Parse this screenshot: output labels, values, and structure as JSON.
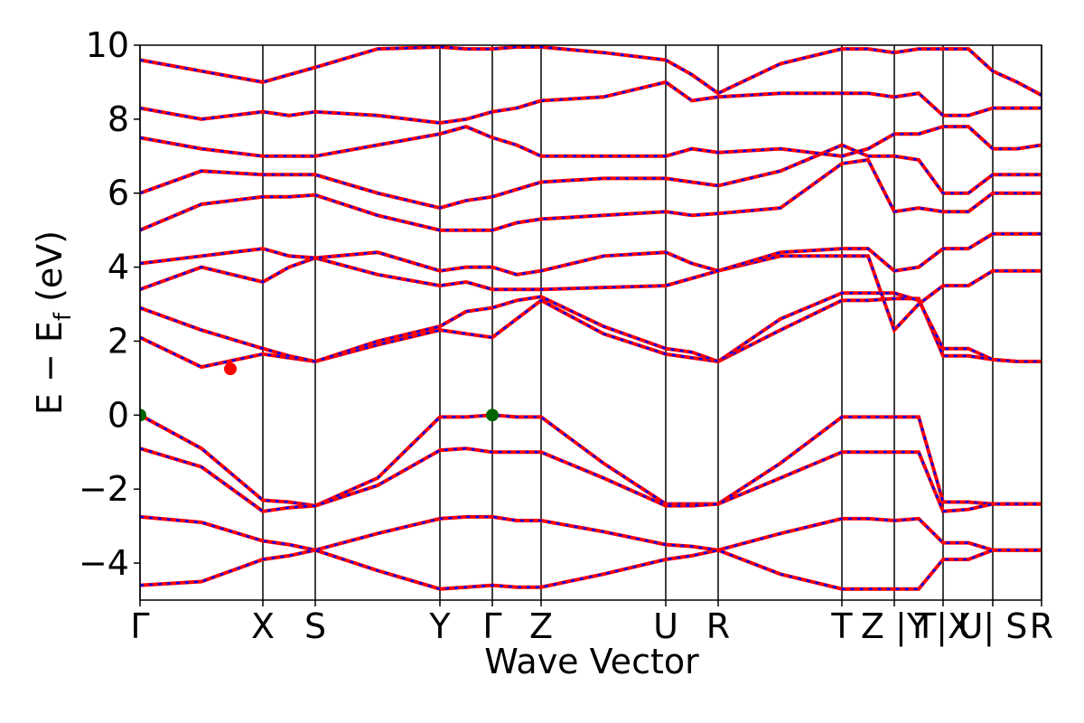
{
  "chart_data": {
    "type": "line",
    "xlabel": "Wave Vector",
    "ylabel": {
      "main": "E − E",
      "sub": "f",
      "unit": "(eV)"
    },
    "ylim": [
      -5,
      10
    ],
    "yticks": [
      {
        "value": -4,
        "label": "−4"
      },
      {
        "value": -2,
        "label": "−2"
      },
      0,
      2,
      4,
      6,
      8,
      10
    ],
    "xlim": [
      0,
      9.98
    ],
    "xticks": [
      {
        "value": 0,
        "label": "Γ"
      },
      {
        "value": 1.36,
        "label": "X"
      },
      {
        "value": 1.94,
        "label": "S"
      },
      {
        "value": 3.32,
        "label": "Y"
      },
      {
        "value": 3.9,
        "label": "Γ"
      },
      {
        "value": 4.44,
        "label": "Z"
      },
      {
        "value": 5.82,
        "label": "U"
      },
      {
        "value": 6.4,
        "label": "R"
      },
      {
        "value": 7.77,
        "label": "T"
      },
      {
        "value": 8.35,
        "label": "Z |Y"
      },
      {
        "value": 8.89,
        "label": "T|X"
      },
      {
        "value": 9.44,
        "label": "U| S"
      },
      {
        "value": 9.98,
        "label": "R"
      }
    ],
    "dash_color": "#0000ff",
    "x": [
      0,
      0.68,
      1.36,
      1.65,
      1.94,
      2.63,
      3.32,
      3.61,
      3.9,
      4.17,
      4.44,
      5.13,
      5.82,
      6.11,
      6.4,
      7.09,
      7.77,
      8.06,
      8.35,
      8.62,
      8.89,
      9.17,
      9.44,
      9.71,
      9.98
    ],
    "series": [
      {
        "color": "#ff0000",
        "values": [
          0,
          -0.9,
          -2.3,
          -2.35,
          -2.45,
          -1.7,
          -0.05,
          -0.05,
          0,
          -0.05,
          -0.05,
          -1.3,
          -2.4,
          -2.4,
          -2.4,
          -1.3,
          -0.05,
          -0.05,
          -0.05,
          -0.05,
          -2.35,
          -2.35,
          -2.4,
          -2.4,
          -2.4
        ]
      },
      {
        "color": "#ff0000",
        "values": [
          -0.9,
          -1.4,
          -2.6,
          -2.5,
          -2.45,
          -1.9,
          -0.95,
          -0.9,
          -1.0,
          -1.0,
          -1.0,
          -1.7,
          -2.45,
          -2.45,
          -2.4,
          -1.7,
          -1.0,
          -1.0,
          -1.0,
          -1.0,
          -2.6,
          -2.55,
          -2.4,
          -2.4,
          -2.4
        ]
      },
      {
        "color": "#ff0000",
        "values": [
          -2.75,
          -2.9,
          -3.4,
          -3.5,
          -3.65,
          -3.2,
          -2.8,
          -2.75,
          -2.75,
          -2.85,
          -2.85,
          -3.15,
          -3.5,
          -3.55,
          -3.65,
          -3.2,
          -2.8,
          -2.8,
          -2.85,
          -2.8,
          -3.45,
          -3.45,
          -3.65,
          -3.65,
          -3.65
        ]
      },
      {
        "color": "#ff0000",
        "values": [
          -4.6,
          -4.5,
          -3.9,
          -3.8,
          -3.65,
          -4.2,
          -4.7,
          -4.65,
          -4.6,
          -4.65,
          -4.65,
          -4.3,
          -3.9,
          -3.8,
          -3.65,
          -4.3,
          -4.7,
          -4.7,
          -4.7,
          -4.7,
          -3.9,
          -3.9,
          -3.65,
          -3.65,
          -3.65
        ]
      },
      {
        "color": "#ff0000",
        "values": [
          2.1,
          1.3,
          1.65,
          1.55,
          1.45,
          1.9,
          2.3,
          2.2,
          2.1,
          2.6,
          3.1,
          2.2,
          1.65,
          1.55,
          1.45,
          2.3,
          3.1,
          3.1,
          3.15,
          3.15,
          1.6,
          1.6,
          1.5,
          1.45,
          1.45
        ]
      },
      {
        "color": "#ff0000",
        "values": [
          2.9,
          2.3,
          1.8,
          1.6,
          1.45,
          2.0,
          2.4,
          2.8,
          2.9,
          3.1,
          3.2,
          2.4,
          1.8,
          1.7,
          1.45,
          2.6,
          3.3,
          3.3,
          3.3,
          3.1,
          1.8,
          1.8,
          1.5,
          1.45,
          1.45
        ]
      },
      {
        "color": "#ff0000",
        "values": [
          3.4,
          4.0,
          3.6,
          4.0,
          4.25,
          3.8,
          3.5,
          3.6,
          3.4,
          3.4,
          3.4,
          3.45,
          3.5,
          3.7,
          3.9,
          4.3,
          4.3,
          4.3,
          2.3,
          3.0,
          3.5,
          3.5,
          3.9,
          3.9,
          3.9
        ]
      },
      {
        "color": "#ff0000",
        "values": [
          4.1,
          4.3,
          4.5,
          4.3,
          4.25,
          4.4,
          3.9,
          4.0,
          4.0,
          3.8,
          3.9,
          4.3,
          4.4,
          4.1,
          3.9,
          4.4,
          4.5,
          4.5,
          3.9,
          4.0,
          4.5,
          4.5,
          4.9,
          4.9,
          4.9
        ]
      },
      {
        "color": "#ff0000",
        "values": [
          5.0,
          5.7,
          5.9,
          5.9,
          5.95,
          5.4,
          5.0,
          5.0,
          5.0,
          5.2,
          5.3,
          5.4,
          5.5,
          5.4,
          5.45,
          5.6,
          6.8,
          6.9,
          5.5,
          5.6,
          5.5,
          5.5,
          6.0,
          6.0,
          6.0
        ]
      },
      {
        "color": "#ff0000",
        "values": [
          6.0,
          6.6,
          6.5,
          6.5,
          6.5,
          6.0,
          5.6,
          5.8,
          5.9,
          6.1,
          6.3,
          6.4,
          6.4,
          6.3,
          6.2,
          6.6,
          7.3,
          7.0,
          7.0,
          6.9,
          6.0,
          6.0,
          6.5,
          6.5,
          6.5
        ]
      },
      {
        "color": "#ff0000",
        "values": [
          7.5,
          7.2,
          7.0,
          7.0,
          7.0,
          7.3,
          7.6,
          7.8,
          7.5,
          7.3,
          7.0,
          7.0,
          7.0,
          7.2,
          7.1,
          7.2,
          7.0,
          7.2,
          7.6,
          7.6,
          7.8,
          7.8,
          7.2,
          7.2,
          7.3
        ]
      },
      {
        "color": "#ff0000",
        "values": [
          8.3,
          8.0,
          8.2,
          8.1,
          8.2,
          8.1,
          7.9,
          8.0,
          8.2,
          8.3,
          8.5,
          8.6,
          9.0,
          8.5,
          8.6,
          8.7,
          8.7,
          8.7,
          8.6,
          8.7,
          8.1,
          8.1,
          8.3,
          8.3,
          8.3
        ]
      },
      {
        "color": "#ff0000",
        "values": [
          9.6,
          9.3,
          9.0,
          9.2,
          9.4,
          9.9,
          9.95,
          9.9,
          9.9,
          9.95,
          9.95,
          9.8,
          9.6,
          9.2,
          8.7,
          9.5,
          9.9,
          9.9,
          9.8,
          9.9,
          9.9,
          9.9,
          9.3,
          9.0,
          8.65
        ]
      }
    ],
    "markers": {
      "x": [
        0,
        3.9,
        1.0
      ],
      "y": [
        0,
        0,
        1.25
      ],
      "colors": [
        "#006400",
        "#006400",
        "#ff0000"
      ]
    }
  }
}
